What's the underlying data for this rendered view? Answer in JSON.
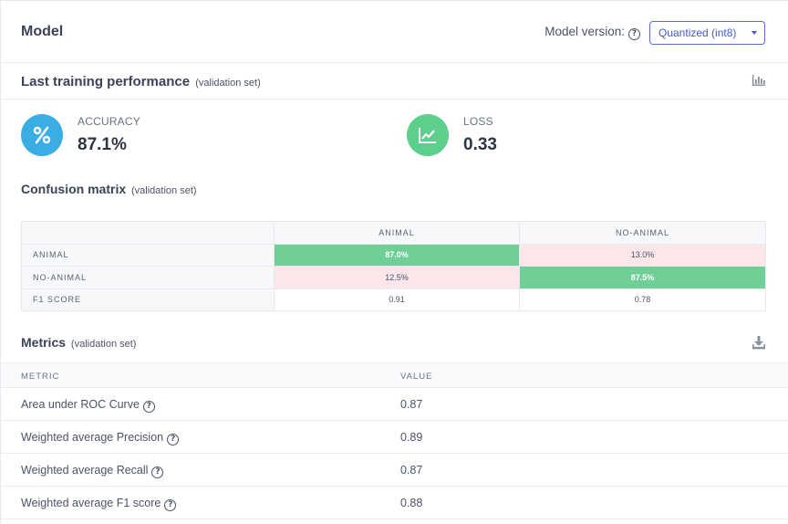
{
  "header": {
    "title": "Model",
    "version_label": "Model version:",
    "version_value": "Quantized (int8)"
  },
  "performance": {
    "title": "Last training performance",
    "subtitle": "(validation set)",
    "accuracy": {
      "label": "ACCURACY",
      "value": "87.1%",
      "icon": "percent-icon",
      "color": "#3aaee4"
    },
    "loss": {
      "label": "LOSS",
      "value": "0.33",
      "icon": "trend-chart-icon",
      "color": "#5ccf8d"
    }
  },
  "confusion": {
    "title": "Confusion matrix",
    "subtitle": "(validation set)",
    "columns": [
      "ANIMAL",
      "NO-ANIMAL"
    ],
    "rows": [
      {
        "label": "ANIMAL",
        "cells": [
          "87.0%",
          "13.0%"
        ],
        "kinds": [
          "good",
          "bad"
        ]
      },
      {
        "label": "NO-ANIMAL",
        "cells": [
          "12.5%",
          "87.5%"
        ],
        "kinds": [
          "bad",
          "good"
        ]
      },
      {
        "label": "F1 SCORE",
        "cells": [
          "0.91",
          "0.78"
        ],
        "kinds": [
          "plain",
          "plain"
        ]
      }
    ]
  },
  "metrics": {
    "title": "Metrics",
    "subtitle": "(validation set)",
    "col_metric": "METRIC",
    "col_value": "VALUE",
    "rows": [
      {
        "metric": "Area under ROC Curve",
        "value": "0.87"
      },
      {
        "metric": "Weighted average Precision",
        "value": "0.89"
      },
      {
        "metric": "Weighted average Recall",
        "value": "0.87"
      },
      {
        "metric": "Weighted average F1 score",
        "value": "0.88"
      }
    ]
  },
  "colors": {
    "good": "#6fcf97",
    "bad": "#fbe6ea",
    "accent": "#4258c9"
  }
}
